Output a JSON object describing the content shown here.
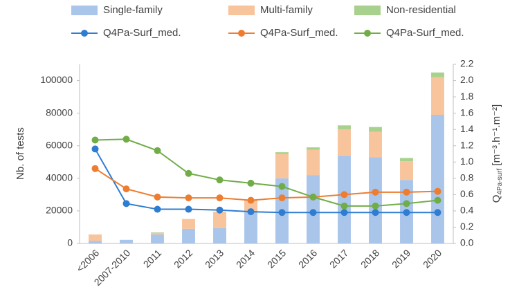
{
  "chart_data": {
    "type": "bar",
    "categories": [
      "<2006",
      "2007-2010",
      "2011",
      "2012",
      "2013",
      "2014",
      "2015",
      "2016",
      "2017",
      "2018",
      "2019",
      "2020"
    ],
    "series": [
      {
        "name": "Single-family",
        "kind": "bar",
        "color": "#a9c6ea",
        "values": [
          1500,
          2200,
          5500,
          9000,
          9500,
          20000,
          40000,
          42000,
          54000,
          53000,
          39000,
          79000
        ]
      },
      {
        "name": "Multi-family",
        "kind": "bar",
        "color": "#f8c49c",
        "values": [
          4000,
          0,
          1000,
          6000,
          10000,
          7000,
          15000,
          15500,
          16000,
          15500,
          11500,
          23000
        ]
      },
      {
        "name": "Non-residential",
        "kind": "bar",
        "color": "#a9d18e",
        "values": [
          0,
          0,
          300,
          0,
          0,
          0,
          1000,
          1500,
          2500,
          3000,
          2000,
          3000
        ]
      },
      {
        "name": "Q4Pa-Surf_med.",
        "kind": "line",
        "axis": "y2",
        "color": "#2e7dd1",
        "values": [
          1.16,
          0.49,
          0.42,
          0.42,
          0.41,
          0.39,
          0.38,
          0.38,
          0.38,
          0.38,
          0.38,
          0.38
        ]
      },
      {
        "name": "Q4Pa-Surf_med.",
        "kind": "line",
        "axis": "y2",
        "color": "#ed7d31",
        "values": [
          0.92,
          0.67,
          0.57,
          0.56,
          0.56,
          0.53,
          0.56,
          0.57,
          0.6,
          0.63,
          0.63,
          0.64
        ]
      },
      {
        "name": "Q4Pa-Surf_med.",
        "kind": "line",
        "axis": "y2",
        "color": "#70ad47",
        "values": [
          1.27,
          1.28,
          1.14,
          0.86,
          0.78,
          0.74,
          0.7,
          0.57,
          0.46,
          0.46,
          0.49,
          0.53
        ]
      }
    ],
    "y_label": "Nb. of tests",
    "y2_label": {
      "main": "Q",
      "sub": "4Pa-surf",
      "unit": " [m⁻³.h⁻¹.m⁻²]"
    },
    "ylim": [
      0,
      110000
    ],
    "yticks": [
      0,
      20000,
      40000,
      60000,
      80000,
      100000
    ],
    "y2lim": [
      0,
      2.2
    ],
    "y2ticks": [
      {
        "value": 0,
        "label": "0.0"
      },
      {
        "value": 0.2,
        "label": "0.2"
      },
      {
        "value": 0.4,
        "label": "0.4"
      },
      {
        "value": 0.6,
        "label": "0.6"
      },
      {
        "value": 0.8,
        "label": "0.8"
      },
      {
        "value": 1,
        "label": "1.0"
      },
      {
        "value": 1.2,
        "label": "1.2"
      },
      {
        "value": 1.4,
        "label": "1.4"
      },
      {
        "value": 1.6,
        "label": "1.6"
      },
      {
        "value": 1.8,
        "label": "1.8"
      },
      {
        "value": 2,
        "label": "2.0"
      },
      {
        "value": 2.2,
        "label": "2.2"
      }
    ],
    "grid": false,
    "legend": "top"
  }
}
